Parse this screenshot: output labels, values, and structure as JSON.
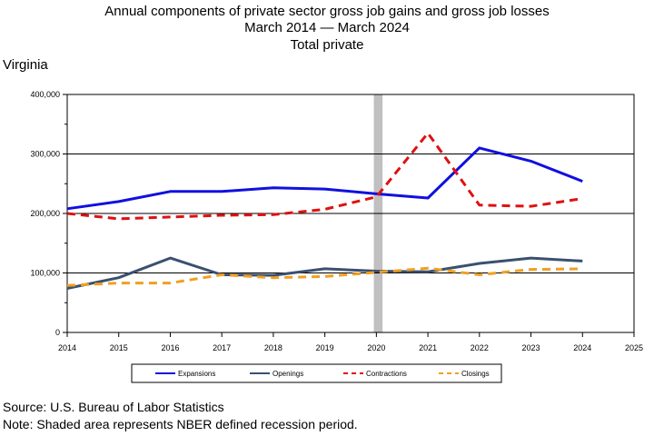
{
  "chart_data": {
    "type": "line",
    "title": "Annual components of private sector gross job gains and gross job losses",
    "subtitle": "March 2014 — March 2024",
    "subtitle2": "Total private",
    "region_label": "Virginia",
    "xlabel": "",
    "ylabel": "",
    "xlim": [
      2014,
      2025
    ],
    "ylim": [
      0,
      400000
    ],
    "x_ticks": [
      "2014",
      "2015",
      "2016",
      "2017",
      "2018",
      "2019",
      "2020",
      "2021",
      "2022",
      "2023",
      "2024",
      "2025"
    ],
    "y_ticks": [
      "0",
      "100,000",
      "200,000",
      "300,000",
      "400,000"
    ],
    "x": [
      2014,
      2015,
      2016,
      2017,
      2018,
      2019,
      2020,
      2021,
      2022,
      2023,
      2024
    ],
    "grid": "horizontal",
    "legend_position": "bottom",
    "recession": {
      "start": 2019.95,
      "end": 2020.12,
      "color": "#c0c0c0"
    },
    "series": [
      {
        "name": "Expansions",
        "color": "#1010e0",
        "style": "solid",
        "values": [
          208000,
          220000,
          237000,
          237000,
          243000,
          241000,
          233000,
          226000,
          310000,
          288000,
          254000
        ]
      },
      {
        "name": "Openings",
        "color": "#3a5070",
        "style": "solid",
        "values": [
          74000,
          92000,
          125000,
          97000,
          96000,
          107000,
          103000,
          102000,
          116000,
          125000,
          120000
        ]
      },
      {
        "name": "Contractions",
        "color": "#e01010",
        "style": "dashed",
        "values": [
          200000,
          191000,
          194000,
          197000,
          198000,
          207000,
          228000,
          335000,
          214000,
          212000,
          225000
        ]
      },
      {
        "name": "Closings",
        "color": "#f0a020",
        "style": "dashed",
        "values": [
          79000,
          83000,
          83000,
          97000,
          92000,
          94000,
          101000,
          108000,
          97000,
          106000,
          107000
        ]
      }
    ]
  },
  "footer": {
    "source": "Source: U.S. Bureau of Labor Statistics",
    "note": "Note: Shaded area represents NBER defined recession period."
  }
}
